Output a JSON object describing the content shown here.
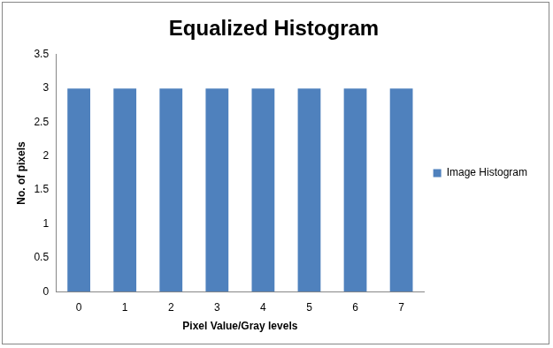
{
  "chart_data": {
    "type": "bar",
    "title": "Equalized Histogram",
    "x_label": "Pixel Value/Gray levels",
    "y_label": "No. of pixels",
    "categories": [
      "0",
      "1",
      "2",
      "3",
      "4",
      "5",
      "6",
      "7"
    ],
    "series": [
      {
        "name": "Image Histogram",
        "color": "#4f81bd",
        "values": [
          3,
          3,
          3,
          3,
          3,
          3,
          3,
          3
        ]
      }
    ],
    "ylim": [
      0,
      3.5
    ],
    "yticks": [
      0,
      0.5,
      1,
      1.5,
      2,
      2.5,
      3,
      3.5
    ],
    "grid": false,
    "legend": "right"
  }
}
